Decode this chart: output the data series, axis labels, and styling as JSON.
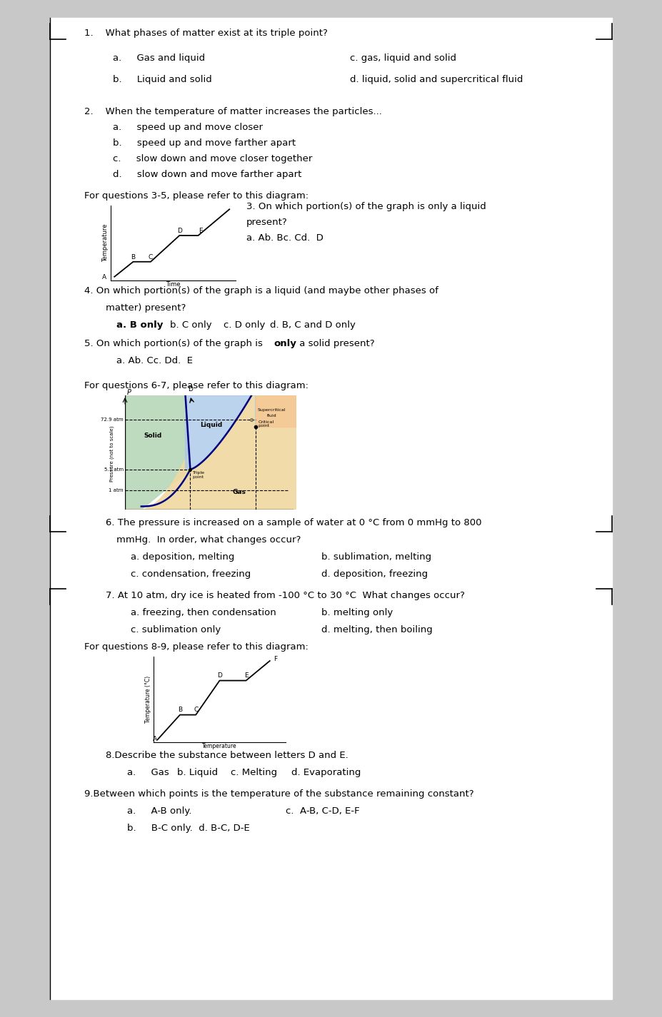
{
  "page_bg": "#ffffff",
  "outer_bg": "#c8c8c8",
  "fs": 9.0,
  "lm": 0.13,
  "q1_text": "1.    What phases of matter exist at its triple point?",
  "q1_a": "a.     Gas and liquid",
  "q1_c": "c. gas, liquid and solid",
  "q1_b": "b.     Liquid and solid",
  "q1_d": "d. liquid, solid and supercritical fluid",
  "q2_text": "2.    When the temperature of matter increases the particles...",
  "q2_a": "a.     speed up and move closer",
  "q2_b": "b.     speed up and move farther apart",
  "q2_c": "c.     slow down and move closer together",
  "q2_d": "d.     slow down and move farther apart",
  "q35_intro": "For questions 3-5, please refer to this diagram:",
  "q3_header": "3. On which portion(s) of the graph is only a liquid",
  "q3_header2": "present?",
  "q3_ans": "a. Ab. Bc. Cd.  D",
  "q4_text": "4. On which portion(s) of the graph is a liquid (and maybe other phases of",
  "q4_text2": "matter) present?",
  "q4_ans_a": "a. B only",
  "q4_ans_b": "b. C only",
  "q4_ans_c": "c. D only",
  "q4_ans_d": "d. B, C and D only",
  "q5_text1": "5. On which portion(s) of the graph is ",
  "q5_bold": "only",
  "q5_text2": " a solid present?",
  "q5_ans": "a. Ab. Cc. Dd.  E",
  "q67_intro": "For questions 6-7, please refer to this diagram:",
  "q6_text": "6. The pressure is increased on a sample of water at 0 °C from 0 mmHg to 800",
  "q6_text2": "   mmHg.  In order, what changes occur?",
  "q6_ans_a": "a. deposition, melting",
  "q6_ans_b": "b. sublimation, melting",
  "q6_ans_c": "c. condensation, freezing",
  "q6_ans_d": "d. deposition, freezing",
  "q7_text": "7. At 10 atm, dry ice is heated from -100 °C to 30 °C  What changes occur?",
  "q7_ans_a": "a. freezing, then condensation",
  "q7_ans_b": "b. melting only",
  "q7_ans_c": "c. sublimation only",
  "q7_ans_d": "d. melting, then boiling",
  "q89_intro": "For questions 8-9, please refer to this diagram:",
  "q8_text": "8.Describe the substance between letters D and E.",
  "q8_a": "a.     Gas",
  "q8_b": "b. Liquid",
  "q8_c": "c. Melting",
  "q8_d": "d. Evaporating",
  "q9_text": "9.Between which points is the temperature of the substance remaining constant?",
  "q9_a": "a.     A-B only.",
  "q9_c": "c.  A-B, C-D, E-F",
  "q9_b": "b.     B-C only.  d. B-C, D-E"
}
